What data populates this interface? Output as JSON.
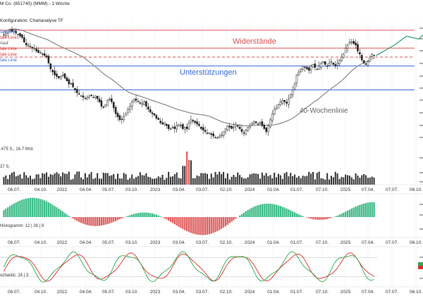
{
  "header": {
    "title": "M Co. (851745) (MMM) - 1 Woche",
    "config": "Konfiguration: Chartanalyse TF"
  },
  "legend": [
    {
      "text": "tale Linie",
      "color": "#3a6fd8"
    },
    {
      "text": "tale Linie",
      "color": "#e03030"
    },
    {
      "text": "rlauf",
      "color": "#555555"
    },
    {
      "text": "tale Linie",
      "color": "#e03030"
    },
    {
      "text": "tale Linie",
      "color": "#e03030"
    },
    {
      "text": "tale Linie",
      "color": "#3a6fd8"
    }
  ],
  "annotations": {
    "resistance": "Widerstände",
    "support": "Unterstützungen",
    "ma40": "40-Wochenlinie"
  },
  "volume_label": ".475 S., 16,7 Mrd.",
  "volume_label2": "37 S.",
  "macd_label": "Histogramm: 12 | 26 | 9",
  "stoch_label": "ochastic: 14 | 3",
  "x_ticks": [
    "06.07.",
    "04.10.",
    "2022",
    "04.04.",
    "05.07.",
    "03.10.",
    "2023",
    "03.04.",
    "03.07.",
    "02.10.",
    "2024",
    "01.04.",
    "01.07.",
    "07.10.",
    "2025",
    "07.04.",
    "07.07.",
    "06.10."
  ],
  "colors": {
    "up": "#1a1a1a",
    "down": "#1a1a1a",
    "resistance": "#e05555",
    "support": "#3a6fd8",
    "ma": "#888888",
    "projection": "#2f9e6e",
    "macd_pos": "#3dbb86",
    "macd_neg": "#e06060",
    "stoch_k": "#2fa84f",
    "stoch_d": "#e03030",
    "volume": "#333333",
    "volume_spike": "#e05555"
  },
  "chart_data": [
    {
      "type": "candlestick",
      "title": "M Co. (851745) (MMM) - 1 Woche",
      "weeks": 210,
      "close": [
        145,
        146,
        147,
        148,
        147,
        148,
        146,
        145,
        144,
        143,
        140,
        138,
        138,
        137,
        136,
        136,
        134,
        133,
        133,
        132,
        131,
        130,
        126,
        122,
        120,
        118,
        117,
        116,
        117,
        118,
        116,
        114,
        112,
        112,
        110,
        108,
        106,
        105,
        104,
        103,
        102,
        103,
        104,
        104,
        103,
        104,
        102,
        100,
        97,
        96,
        98,
        101,
        102,
        100,
        96,
        92,
        90,
        88,
        88,
        90,
        92,
        95,
        97,
        100,
        102,
        101,
        100,
        99,
        99,
        100,
        97,
        95,
        93,
        92,
        91,
        89,
        88,
        86,
        85,
        86,
        84,
        82,
        82,
        83,
        82,
        84,
        85,
        84,
        82,
        83,
        82,
        86,
        88,
        87,
        86,
        85,
        84,
        82,
        81,
        80,
        79,
        79,
        78,
        77,
        76,
        76,
        77,
        78,
        80,
        82,
        84,
        83,
        82,
        83,
        85,
        84,
        82,
        80,
        79,
        81,
        83,
        84,
        86,
        87,
        86,
        85,
        86,
        84,
        82,
        80,
        84,
        88,
        92,
        95,
        96,
        98,
        100,
        101,
        100,
        99,
        102,
        105,
        108,
        112,
        118,
        120,
        122,
        124,
        123,
        122,
        121,
        124,
        125,
        123,
        122,
        124,
        126,
        127,
        125,
        124,
        126,
        127,
        125,
        124,
        126,
        128,
        130,
        132,
        136,
        138,
        140,
        140,
        139,
        138,
        134,
        132,
        128,
        126,
        125,
        127,
        130,
        132,
        131
      ],
      "ma40": "simple 40-period moving average",
      "resistance_levels": [
        148,
        136,
        130
      ],
      "support_levels": [
        124,
        108
      ],
      "projection": [
        [
          183,
          131
        ],
        [
          192,
          138
        ],
        [
          198,
          144
        ],
        [
          204,
          142
        ],
        [
          210,
          150
        ]
      ]
    },
    {
      "type": "bar",
      "title": "Volume",
      "note": "weekly volume with a spike in late 2022"
    },
    {
      "type": "bar",
      "title": "MACD Histogramm: 12 | 26 | 9"
    },
    {
      "type": "line",
      "title": "Stochastic: 14 | 3"
    }
  ]
}
